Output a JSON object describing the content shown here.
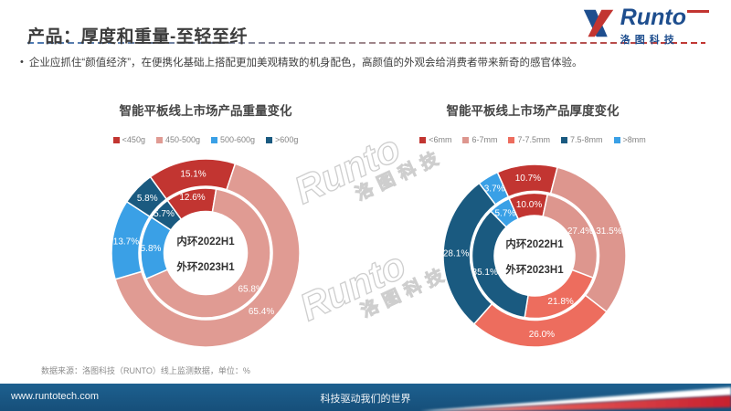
{
  "slide": {
    "title": "产品：厚度和重量-至轻至纤",
    "bullet_marker": "•",
    "bullet": "企业应抓住“颜值经济”，在便携化基础上搭配更加美观精致的机身配色，高颜值的外观会给消费者带来新奇的感官体验。",
    "source_note": "数据来源：洛图科技（RUNTO）线上监测数据，单位：%"
  },
  "logo": {
    "brand": "Runto",
    "brand_cn": "洛图科技",
    "blue": "#1e4e8e",
    "red": "#c23531"
  },
  "watermark": {
    "brand": "Runto",
    "brand_cn": "洛图科技"
  },
  "footer": {
    "website": "www.runtotech.com",
    "slogan": "科技驱动我们的世界",
    "bar_color": "#16537e"
  },
  "chart_data": [
    {
      "type": "donut",
      "title": "智能平板线上市场产品重量变化",
      "categories": [
        "<450g",
        "450-500g",
        "500-600g",
        ">600g"
      ],
      "colors": [
        "#c23531",
        "#e09b93",
        "#3aa0e6",
        "#1a5a80"
      ],
      "series": [
        {
          "name": "2022H1",
          "ring": "inner",
          "values": [
            12.6,
            65.8,
            15.8,
            5.7
          ]
        },
        {
          "name": "2023H1",
          "ring": "outer",
          "values": [
            15.1,
            65.4,
            13.7,
            5.8
          ]
        }
      ],
      "center_labels": [
        "内环2022H1",
        "外环2023H1"
      ],
      "start_offset_deg": -36,
      "unit": "%",
      "legend_position": "top"
    },
    {
      "type": "donut",
      "title": "智能平板线上市场产品厚度变化",
      "categories": [
        "<6mm",
        "6-7mm",
        "7-7.5mm",
        "7.5-8mm",
        ">8mm"
      ],
      "colors": [
        "#c23531",
        "#dd968e",
        "#ed6d5e",
        "#1a5a80",
        "#3aa0e6"
      ],
      "series": [
        {
          "name": "2022H1",
          "ring": "inner",
          "values": [
            10.0,
            27.4,
            21.8,
            35.1,
            5.7
          ]
        },
        {
          "name": "2023H1",
          "ring": "outer",
          "values": [
            10.7,
            31.5,
            26.0,
            28.1,
            3.7
          ]
        }
      ],
      "center_labels": [
        "内环2022H1",
        "外环2023H1"
      ],
      "start_offset_deg": -24,
      "unit": "%",
      "legend_position": "top"
    }
  ]
}
